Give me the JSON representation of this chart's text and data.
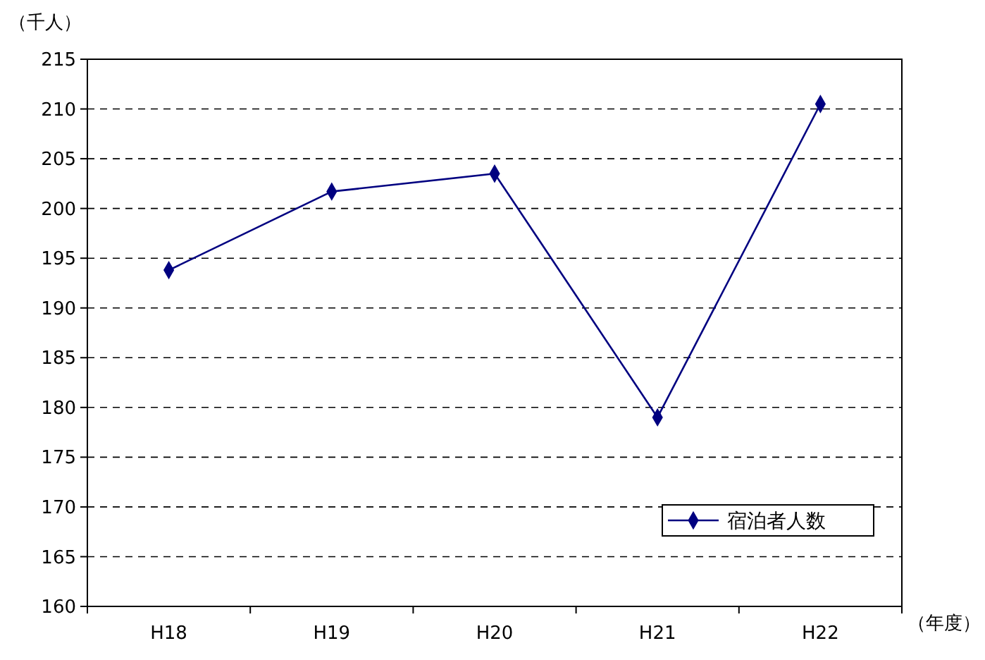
{
  "chart_data": {
    "type": "line",
    "ylabel": "（千人）",
    "xlabel": "（年度）",
    "categories": [
      "H18",
      "H19",
      "H20",
      "H21",
      "H22"
    ],
    "series": [
      {
        "name": "宿泊者人数",
        "color": "#000080",
        "values": [
          193.8,
          201.7,
          203.5,
          179.0,
          210.5
        ]
      }
    ],
    "ylim": [
      160,
      215
    ],
    "yticks": [
      160,
      165,
      170,
      175,
      180,
      185,
      190,
      195,
      200,
      205,
      210,
      215
    ],
    "grid": "y",
    "legend": "bottom right",
    "marker": "diamond",
    "line_style": "solid"
  }
}
